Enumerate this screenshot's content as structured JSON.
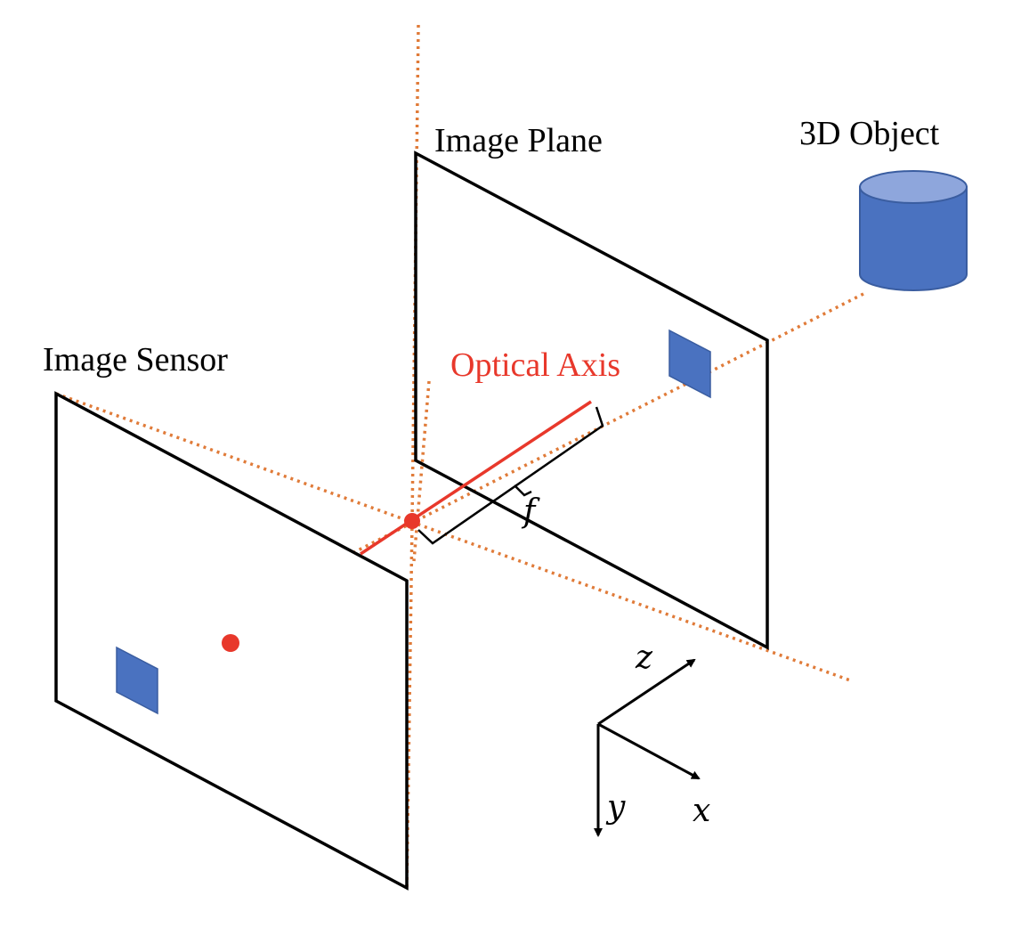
{
  "labels": {
    "image_sensor": "Image Sensor",
    "image_plane": "Image Plane",
    "object_3d": "3D Object",
    "optical_axis": "Optical Axis",
    "focal_length": "f"
  },
  "axes": {
    "z": "z",
    "y": "y",
    "x": "x"
  },
  "colors": {
    "ray": "#e07b39",
    "optical_axis": "#e8382b",
    "object_fill": "#4a72c0",
    "object_top": "#8ea6dc",
    "frame": "#000000"
  }
}
